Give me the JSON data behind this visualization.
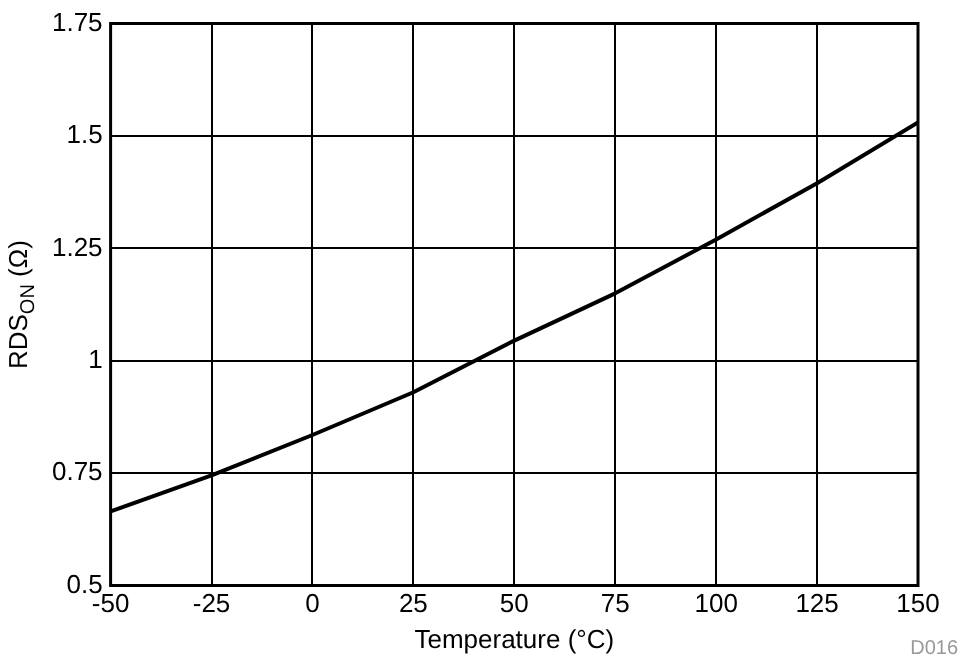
{
  "chart_data": {
    "type": "line",
    "xlabel": "Temperature (°C)",
    "ylabel": "RDS$_{ON}$ (Ω)",
    "x": [
      -50,
      -25,
      0,
      25,
      50,
      75,
      100,
      125,
      150
    ],
    "series": [
      {
        "color": "#000000",
        "values": [
          0.665,
          0.745,
          0.835,
          0.93,
          1.045,
          1.15,
          1.27,
          1.395,
          1.53
        ]
      }
    ],
    "xlim": [
      -50,
      150
    ],
    "xticks": [
      -50,
      -25,
      0,
      25,
      50,
      75,
      100,
      125,
      150
    ],
    "ylim": [
      0.5,
      1.75
    ],
    "yticks": [
      0.5,
      0.75,
      1,
      1.25,
      1.5,
      1.75
    ],
    "grid": true,
    "legend": false,
    "marker": "none",
    "line_style": "solid",
    "annotations": [
      "D016"
    ]
  }
}
